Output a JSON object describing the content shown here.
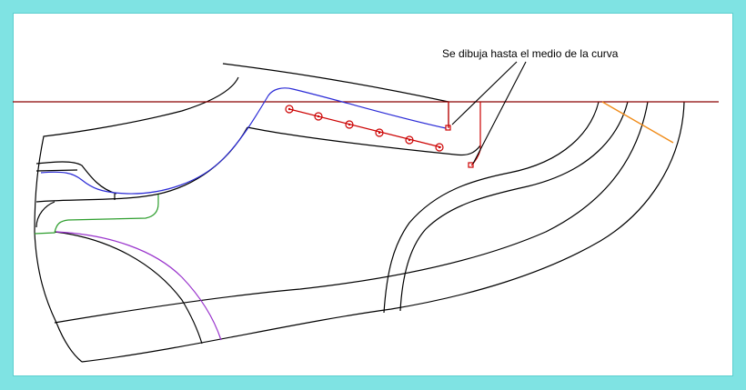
{
  "diagram": {
    "annotation": "Se dibuja hasta el medio de la curva",
    "colors": {
      "frame": "#7fe3e3",
      "background": "#ffffff",
      "outline": "#000000",
      "reference_line": "#8b0000",
      "red_construction": "#cc0000",
      "blue_curve": "#2a2ad6",
      "green_curve": "#2e9e2e",
      "purple_curve": "#9933cc",
      "orange_line": "#f08c1a"
    }
  }
}
